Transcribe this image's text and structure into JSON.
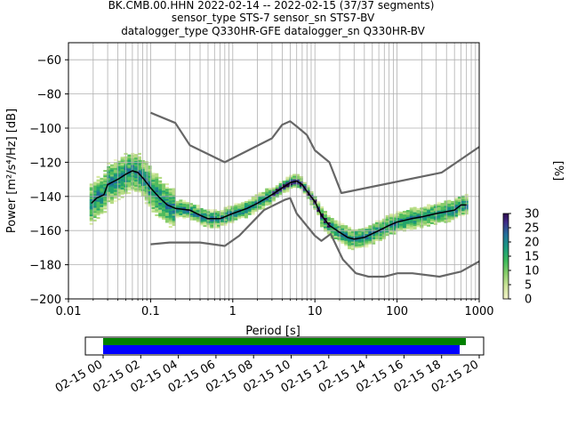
{
  "title_lines": [
    "BK.CMB.00.HHN   2022-02-14 -- 2022-02-15  (37/37 segments)",
    "sensor_type STS-7 sensor_sn STS7-BV",
    "datalogger_type Q330HR-GFE datalogger_sn Q330HR-BV"
  ],
  "chart_data": {
    "type": "heatmap",
    "xlabel": "Period [s]",
    "ylabel": "Power [m²/s⁴/Hz] [dB]",
    "xscale": "log",
    "xlim": [
      0.01,
      1000
    ],
    "ylim": [
      -200,
      -50
    ],
    "x_ticks": [
      {
        "v": 0.01,
        "label": "0.01"
      },
      {
        "v": 0.1,
        "label": "0.1"
      },
      {
        "v": 1,
        "label": "1"
      },
      {
        "v": 10,
        "label": "10"
      },
      {
        "v": 100,
        "label": "100"
      },
      {
        "v": 1000,
        "label": "1000"
      }
    ],
    "y_ticks": [
      -60,
      -80,
      -100,
      -120,
      -140,
      -160,
      -180,
      -200
    ],
    "grid": true,
    "colorbar": {
      "label": "[%]",
      "min": 0,
      "max": 30,
      "ticks": [
        0,
        5,
        10,
        15,
        20,
        25,
        30
      ]
    },
    "mode_curve": [
      [
        0.019,
        -144
      ],
      [
        0.022,
        -141
      ],
      [
        0.027,
        -139
      ],
      [
        0.03,
        -133
      ],
      [
        0.04,
        -130
      ],
      [
        0.05,
        -127
      ],
      [
        0.06,
        -125
      ],
      [
        0.07,
        -126
      ],
      [
        0.08,
        -129
      ],
      [
        0.1,
        -135
      ],
      [
        0.13,
        -141
      ],
      [
        0.16,
        -145
      ],
      [
        0.2,
        -147
      ],
      [
        0.3,
        -148
      ],
      [
        0.4,
        -151
      ],
      [
        0.5,
        -153
      ],
      [
        0.7,
        -153
      ],
      [
        1,
        -150
      ],
      [
        1.5,
        -147
      ],
      [
        2,
        -144
      ],
      [
        3,
        -139
      ],
      [
        4,
        -135
      ],
      [
        5,
        -132
      ],
      [
        6,
        -131
      ],
      [
        7,
        -133
      ],
      [
        8,
        -137
      ],
      [
        10,
        -143
      ],
      [
        12,
        -151
      ],
      [
        15,
        -157
      ],
      [
        20,
        -161
      ],
      [
        25,
        -164
      ],
      [
        30,
        -165
      ],
      [
        40,
        -164
      ],
      [
        60,
        -160
      ],
      [
        80,
        -157
      ],
      [
        100,
        -155
      ],
      [
        150,
        -153
      ],
      [
        200,
        -152
      ],
      [
        300,
        -150
      ],
      [
        500,
        -148
      ],
      [
        600,
        -145
      ],
      [
        700,
        -145
      ]
    ],
    "nhnm": [
      [
        0.1,
        -91
      ],
      [
        0.2,
        -97
      ],
      [
        0.3,
        -110
      ],
      [
        0.8,
        -120
      ],
      [
        3,
        -106
      ],
      [
        4,
        -98
      ],
      [
        5,
        -96
      ],
      [
        6,
        -99
      ],
      [
        8,
        -104
      ],
      [
        10,
        -113
      ],
      [
        15,
        -120
      ],
      [
        21,
        -138
      ],
      [
        350,
        -126
      ],
      [
        1000,
        -111
      ]
    ],
    "nlnm": [
      [
        0.1,
        -168
      ],
      [
        0.17,
        -167
      ],
      [
        0.4,
        -167
      ],
      [
        0.8,
        -169
      ],
      [
        1.2,
        -163
      ],
      [
        2.4,
        -148
      ],
      [
        4.3,
        -142
      ],
      [
        5,
        -141
      ],
      [
        6,
        -150
      ],
      [
        10,
        -163
      ],
      [
        12,
        -166
      ],
      [
        15.6,
        -162
      ],
      [
        21.9,
        -177
      ],
      [
        31.6,
        -185
      ],
      [
        45,
        -187
      ],
      [
        70,
        -187
      ],
      [
        101,
        -185
      ],
      [
        154,
        -185
      ],
      [
        328,
        -187
      ],
      [
        600,
        -184
      ],
      [
        1000,
        -178
      ]
    ]
  },
  "timeline": {
    "x_labels": [
      "02-15 00",
      "02-15 02",
      "02-15 04",
      "02-15 06",
      "02-15 08",
      "02-15 10",
      "02-15 12",
      "02-15 14",
      "02-15 16",
      "02-15 18",
      "02-15 20"
    ],
    "data_bar_color": "#008000",
    "gap_bar_color": "#0000ff"
  }
}
